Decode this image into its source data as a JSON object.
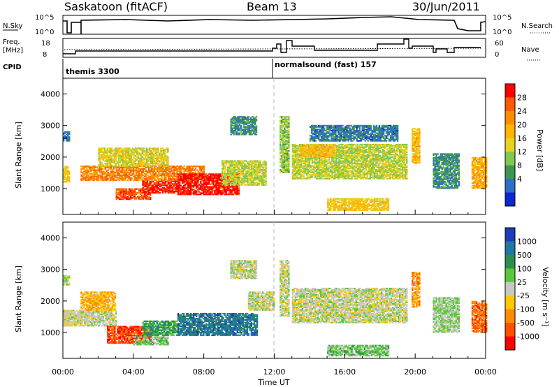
{
  "header": {
    "title": "Saskatoon (fitACF)",
    "beam": "Beam 13",
    "date": "30/Jun/2011"
  },
  "top_panel": {
    "left_label": "N.Sky",
    "left_ticks": [
      "10^5",
      "10^0"
    ],
    "right_ticks": [
      "10^5",
      "10^0"
    ],
    "right_label": "N.Search"
  },
  "freq_panel": {
    "left_label_1": "Freq.",
    "left_label_2": "[MHz]",
    "left_ticks": [
      "18",
      "8"
    ],
    "right_ticks": [
      "60",
      "0"
    ],
    "right_label": "Nave"
  },
  "cpid": {
    "label": "CPID",
    "programs": [
      "themis 3300",
      "normalsound (fast) 157"
    ]
  },
  "chart_data": [
    {
      "type": "heatmap",
      "title": "",
      "xlabel": "",
      "ylabel": "Slant Range [km]",
      "x_ticks": [
        "00:00",
        "04:00",
        "08:00",
        "12:00",
        "16:00",
        "20:00",
        "00:00"
      ],
      "y_ticks": [
        "1000",
        "2000",
        "3000",
        "4000"
      ],
      "xlim_hours": [
        0,
        24
      ],
      "ylim": [
        180,
        4500
      ],
      "colorbar": {
        "label": "Power [dB]",
        "ticks": [
          "28",
          "24",
          "20",
          "16",
          "12",
          "8",
          "4"
        ],
        "colors": [
          "#ff0000",
          "#ff5a00",
          "#ff8c00",
          "#ffb400",
          "#e8d21e",
          "#80c850",
          "#3c9650",
          "#2d6ec8",
          "#0a28d2"
        ]
      },
      "regions": [
        {
          "t0": 0.0,
          "t1": 0.4,
          "r0": 1200,
          "r1": 1700,
          "v": 0.55
        },
        {
          "t0": 0.0,
          "t1": 0.4,
          "r0": 2500,
          "r1": 2800,
          "v": 0.2
        },
        {
          "t0": 1.0,
          "t1": 8.0,
          "r0": 1250,
          "r1": 1700,
          "v": 0.75
        },
        {
          "t0": 2.0,
          "t1": 6.0,
          "r0": 1700,
          "r1": 2300,
          "v": 0.5
        },
        {
          "t0": 3.0,
          "t1": 5.0,
          "r0": 650,
          "r1": 1000,
          "v": 0.85
        },
        {
          "t0": 4.5,
          "t1": 6.5,
          "r0": 850,
          "r1": 1250,
          "v": 0.92
        },
        {
          "t0": 6.5,
          "t1": 10.0,
          "r0": 800,
          "r1": 1450,
          "v": 0.95
        },
        {
          "t0": 9.0,
          "t1": 11.5,
          "r0": 1100,
          "r1": 1900,
          "v": 0.45
        },
        {
          "t0": 9.5,
          "t1": 11.0,
          "r0": 2700,
          "r1": 3300,
          "v": 0.25
        },
        {
          "t0": 12.3,
          "t1": 12.8,
          "r0": 1500,
          "r1": 3300,
          "v": 0.4
        },
        {
          "t0": 13.0,
          "t1": 19.5,
          "r0": 1300,
          "r1": 2400,
          "v": 0.45
        },
        {
          "t0": 13.5,
          "t1": 15.5,
          "r0": 2000,
          "r1": 2400,
          "v": 0.6
        },
        {
          "t0": 15.0,
          "t1": 18.5,
          "r0": 300,
          "r1": 700,
          "v": 0.55
        },
        {
          "t0": 14.0,
          "t1": 19.0,
          "r0": 2500,
          "r1": 3000,
          "v": 0.2
        },
        {
          "t0": 19.8,
          "t1": 20.2,
          "r0": 1800,
          "r1": 2900,
          "v": 0.6
        },
        {
          "t0": 21.0,
          "t1": 22.5,
          "r0": 1000,
          "r1": 2100,
          "v": 0.25
        },
        {
          "t0": 23.2,
          "t1": 24.0,
          "r0": 1000,
          "r1": 2000,
          "v": 0.65
        }
      ]
    },
    {
      "type": "heatmap",
      "title": "",
      "xlabel": "Time UT",
      "ylabel": "Slant Range [km]",
      "x_ticks": [
        "00:00",
        "04:00",
        "08:00",
        "12:00",
        "16:00",
        "20:00",
        "00:00"
      ],
      "y_ticks": [
        "1000",
        "2000",
        "3000",
        "4000"
      ],
      "xlim_hours": [
        0,
        24
      ],
      "ylim": [
        180,
        4500
      ],
      "colorbar": {
        "label": "Velocity [m s⁻¹]",
        "ticks": [
          "1000",
          "500",
          "100",
          "25",
          "-25",
          "-100",
          "-500",
          "-1000"
        ],
        "colors": [
          "#1e3cb4",
          "#1e78a0",
          "#2d8c50",
          "#5ac83c",
          "#c8c8c3",
          "#ffc800",
          "#ff8c00",
          "#ff5000",
          "#ff0000"
        ]
      },
      "regions": [
        {
          "t0": 0.0,
          "t1": 0.4,
          "r0": 1200,
          "r1": 1700,
          "v": 0.5
        },
        {
          "t0": 0.0,
          "t1": 0.4,
          "r0": 2500,
          "r1": 2800,
          "v": 0.5
        },
        {
          "t0": 0.0,
          "t1": 3.0,
          "r0": 1200,
          "r1": 1700,
          "v": 0.5
        },
        {
          "t0": 1.0,
          "t1": 3.0,
          "r0": 1700,
          "r1": 2300,
          "v": 0.35
        },
        {
          "t0": 2.5,
          "t1": 5.0,
          "r0": 650,
          "r1": 1200,
          "v": 0.15
        },
        {
          "t0": 4.5,
          "t1": 6.5,
          "r0": 900,
          "r1": 1350,
          "v": 0.7
        },
        {
          "t0": 6.5,
          "t1": 11.0,
          "r0": 900,
          "r1": 1600,
          "v": 0.82
        },
        {
          "t0": 4.0,
          "t1": 6.0,
          "r0": 600,
          "r1": 850,
          "v": 0.6
        },
        {
          "t0": 10.5,
          "t1": 12.0,
          "r0": 1700,
          "r1": 2300,
          "v": 0.5
        },
        {
          "t0": 9.5,
          "t1": 11.0,
          "r0": 2700,
          "r1": 3300,
          "v": 0.5
        },
        {
          "t0": 12.3,
          "t1": 12.8,
          "r0": 1500,
          "r1": 3300,
          "v": 0.5
        },
        {
          "t0": 13.0,
          "t1": 19.5,
          "r0": 1300,
          "r1": 2400,
          "v": 0.5
        },
        {
          "t0": 15.0,
          "t1": 18.5,
          "r0": 250,
          "r1": 600,
          "v": 0.6
        },
        {
          "t0": 19.8,
          "t1": 20.2,
          "r0": 1800,
          "r1": 2900,
          "v": 0.3
        },
        {
          "t0": 21.0,
          "t1": 22.5,
          "r0": 1000,
          "r1": 2100,
          "v": 0.55
        },
        {
          "t0": 23.2,
          "t1": 24.0,
          "r0": 1000,
          "r1": 2000,
          "v": 0.2
        }
      ]
    }
  ]
}
